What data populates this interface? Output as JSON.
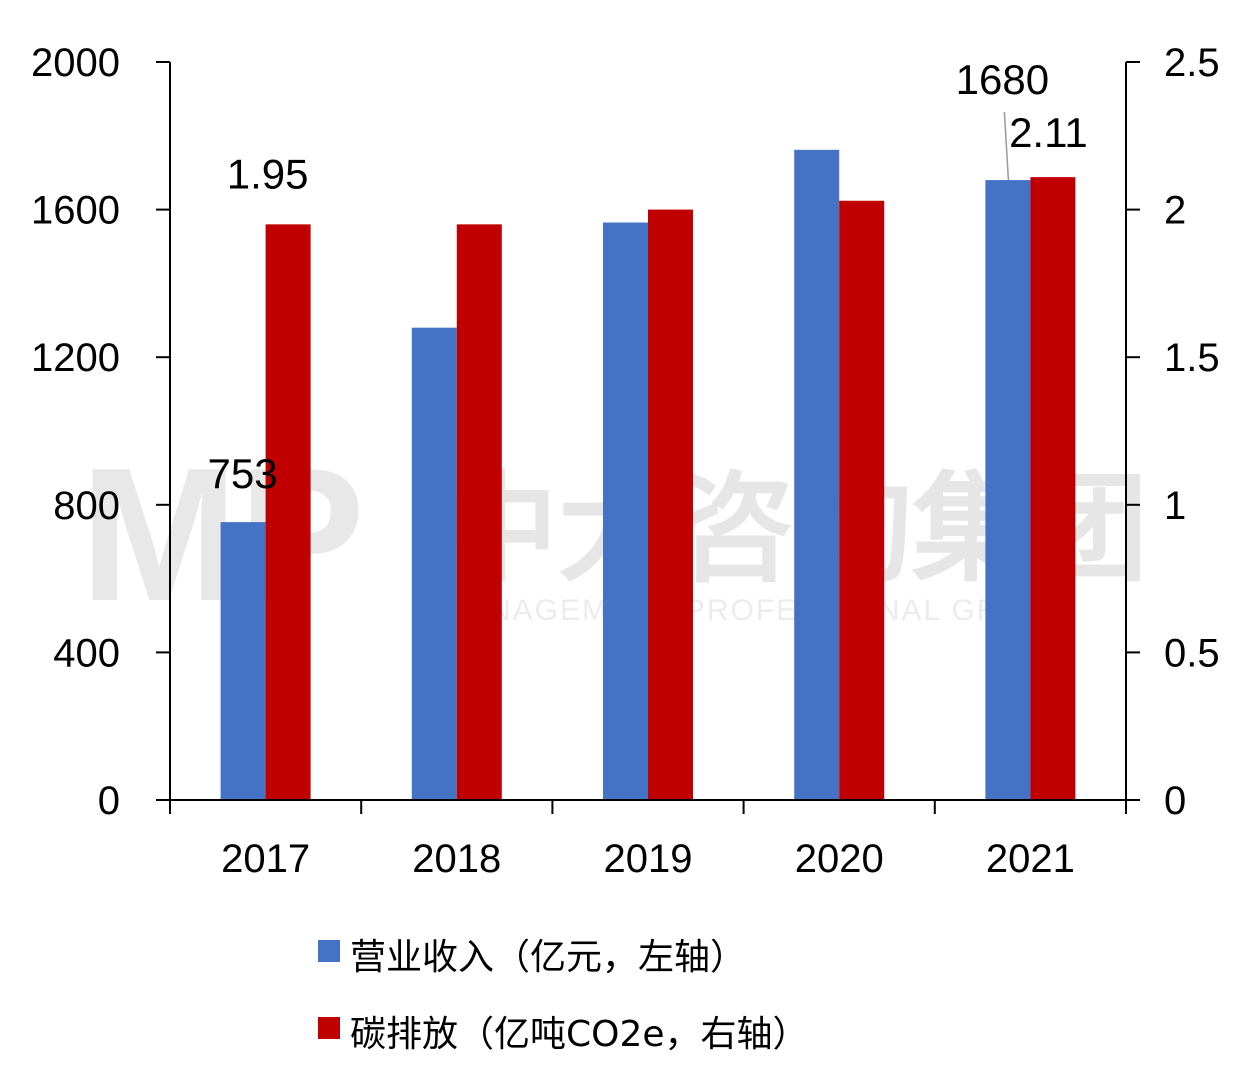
{
  "chart_data": {
    "type": "bar",
    "categories": [
      "2017",
      "2018",
      "2019",
      "2020",
      "2021"
    ],
    "series": [
      {
        "name": "营业收入（亿元，左轴）",
        "axis": "left",
        "color": "#4472C4",
        "values": [
          753,
          1280,
          1565,
          1762,
          1680
        ],
        "labels": {
          "0": "753",
          "4": "1680"
        }
      },
      {
        "name": "碳排放（亿吨CO2e，右轴）",
        "axis": "right",
        "color": "#C00000",
        "values": [
          1.95,
          1.95,
          2.0,
          2.03,
          2.11
        ],
        "labels": {
          "0": "1.95",
          "4": "2.11"
        }
      }
    ],
    "left_axis": {
      "min": 0,
      "max": 2000,
      "ticks": [
        "0",
        "400",
        "800",
        "1200",
        "1600",
        "2000"
      ]
    },
    "right_axis": {
      "min": 0,
      "max": 2.5,
      "ticks": [
        "0",
        "0.5",
        "1",
        "1.5",
        "2",
        "2.5"
      ]
    },
    "legend_position": "bottom"
  },
  "watermark": {
    "logo": "MP",
    "cn": "中大咨询集团",
    "en": "MANAGEMENT PROFESSIONAL GROUP"
  }
}
